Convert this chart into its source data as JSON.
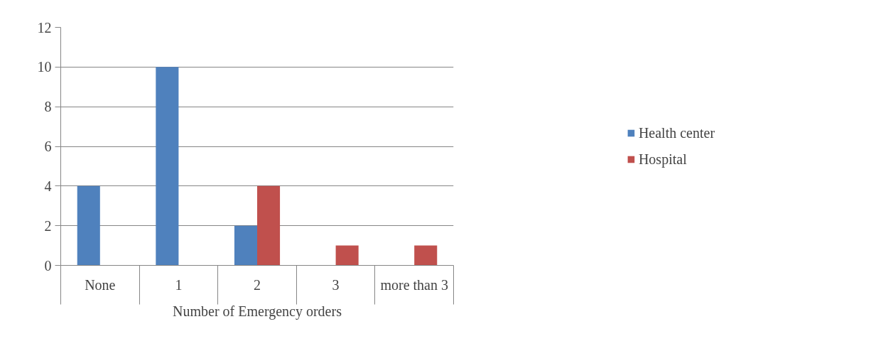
{
  "chart_data": {
    "type": "bar",
    "xlabel": "Number of Emergency orders",
    "categories": [
      "None",
      "1",
      "2",
      "3",
      "more than 3"
    ],
    "series": [
      {
        "name": "Health center",
        "color": "#4f81bd",
        "values": [
          4,
          10,
          2,
          0,
          0
        ]
      },
      {
        "name": "Hospital",
        "color": "#c0504d",
        "values": [
          0,
          0,
          4,
          1,
          1
        ]
      }
    ],
    "ylim": [
      0,
      12
    ],
    "yticks": [
      0,
      2,
      4,
      6,
      8,
      10,
      12
    ],
    "grid": "y",
    "legend": "right"
  }
}
